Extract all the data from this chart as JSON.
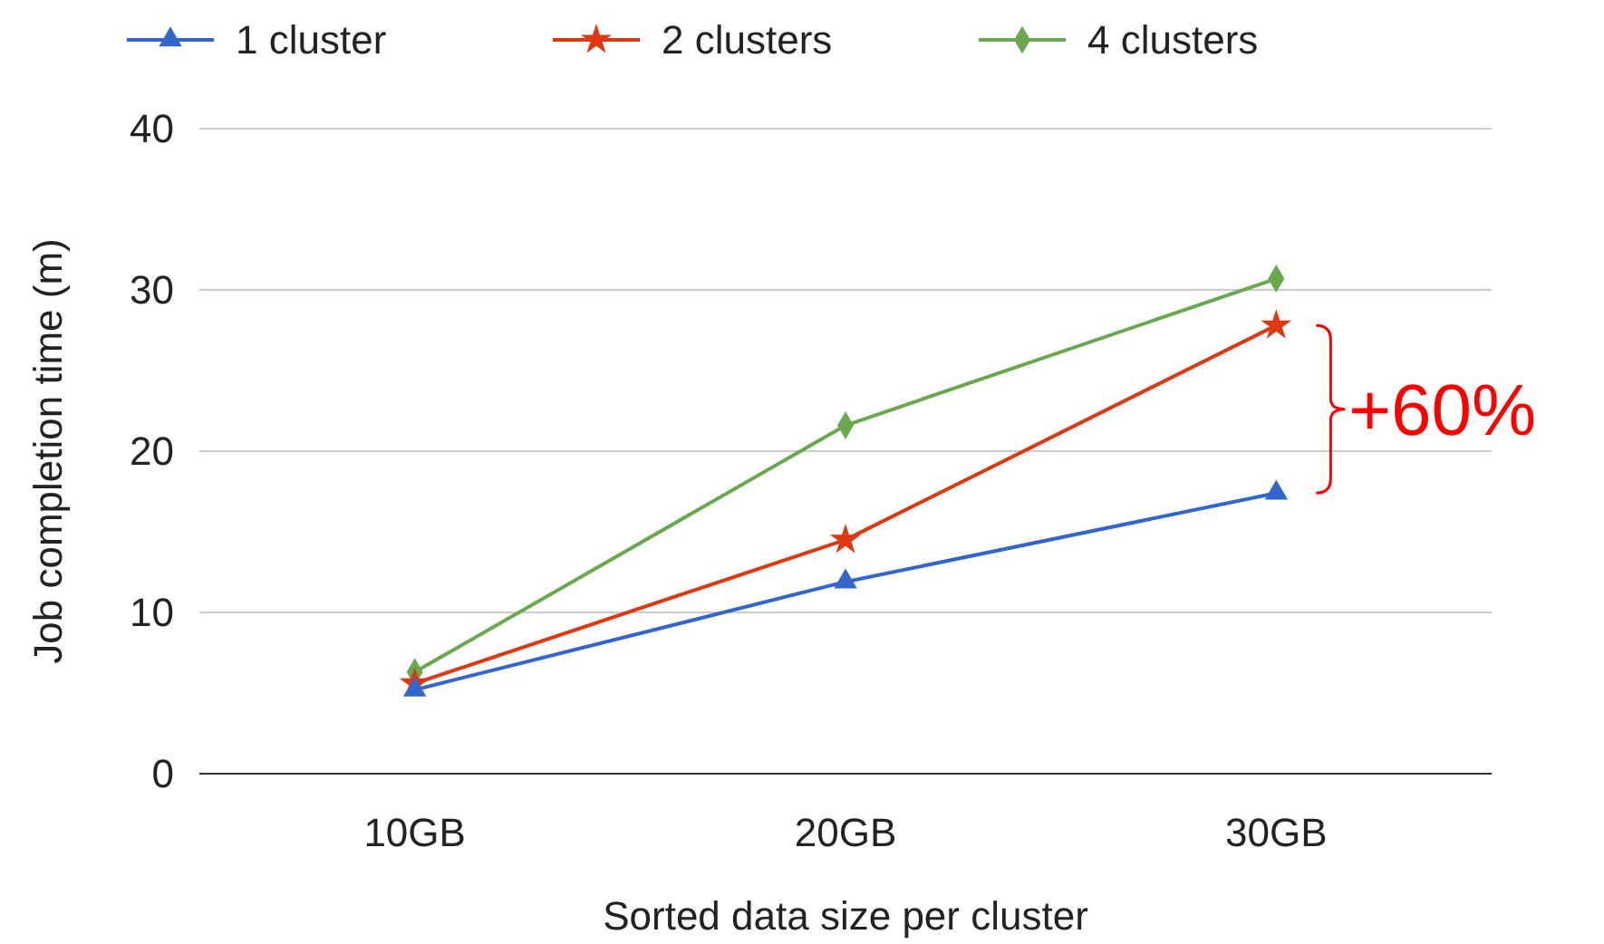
{
  "chart_data": {
    "type": "line",
    "xlabel": "Sorted data size per cluster",
    "ylabel": "Job completion time (m)",
    "categories": [
      "10GB",
      "20GB",
      "30GB"
    ],
    "series": [
      {
        "name": "1 cluster",
        "color": "#3366cc",
        "marker": "triangle",
        "values": [
          5.2,
          11.9,
          17.4
        ]
      },
      {
        "name": "2 clusters",
        "color": "#dc3912",
        "marker": "star",
        "values": [
          5.6,
          14.5,
          27.8
        ]
      },
      {
        "name": "4 clusters",
        "color": "#6aa84f",
        "marker": "diamond",
        "values": [
          6.3,
          21.6,
          30.7
        ]
      }
    ],
    "ylim": [
      0,
      40
    ],
    "yticks": [
      0,
      10,
      20,
      30,
      40
    ],
    "grid": "y",
    "legend": "top",
    "annotations": [
      "+60%"
    ]
  }
}
